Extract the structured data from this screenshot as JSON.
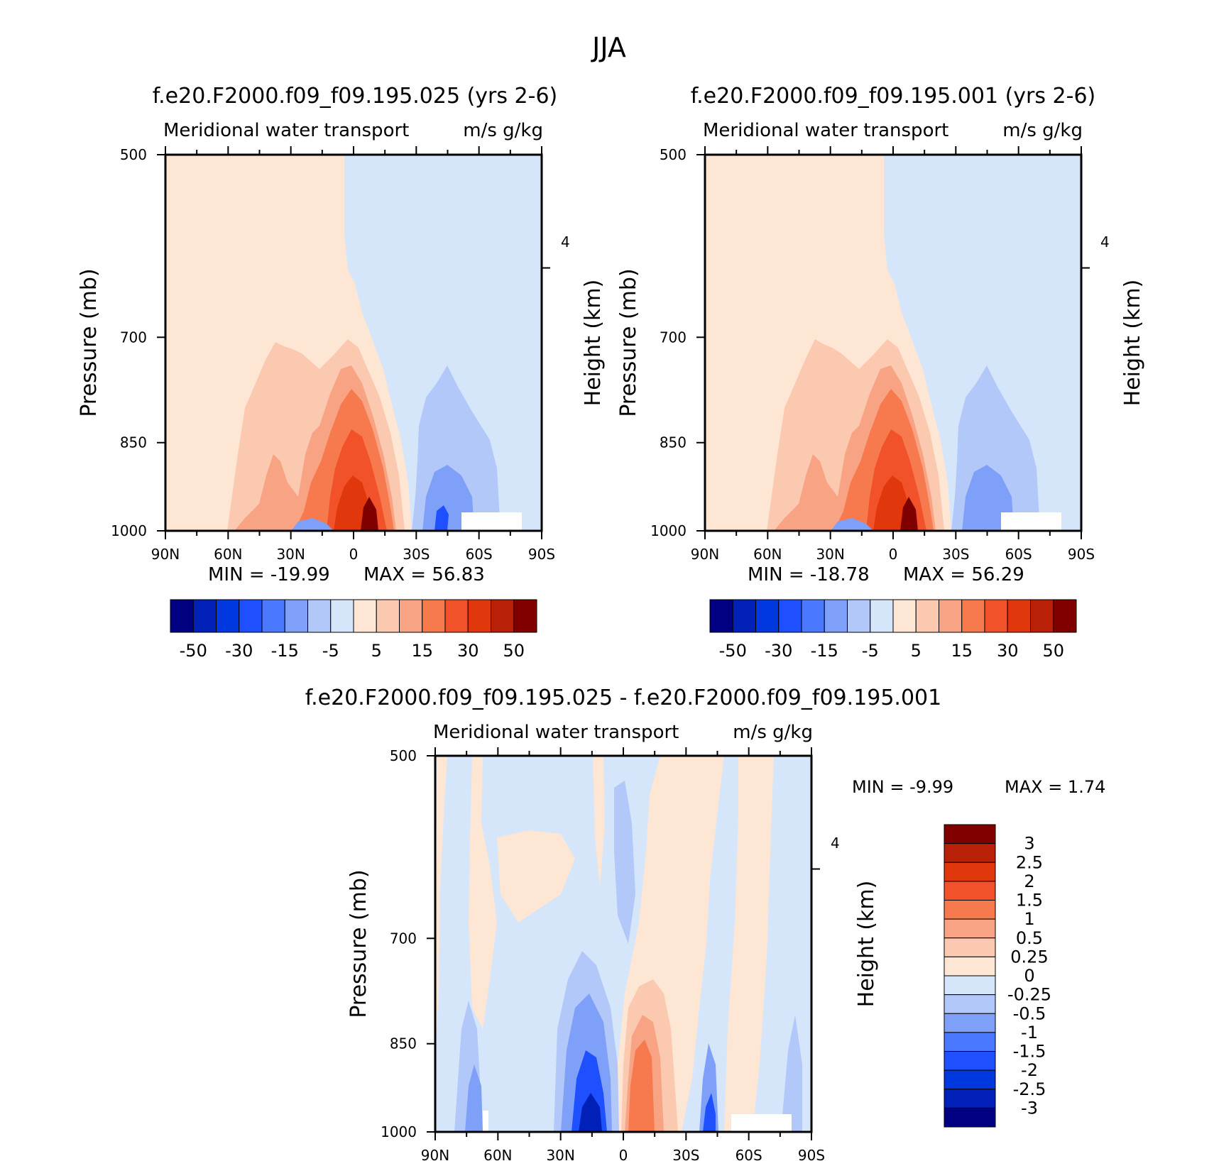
{
  "page": {
    "title": "JJA"
  },
  "chart_data": [
    {
      "type": "heatmap",
      "title": "f.e20.F2000.f09_f09.195.025 (yrs 2-6)",
      "subtitle_left": "Meridional water transport",
      "subtitle_right": "m/s g/kg",
      "xlabel": "",
      "ylabel": "Pressure (mb)",
      "ylabel_right": "Height (km)",
      "x_ticks": [
        "90N",
        "60N",
        "30N",
        "0",
        "30S",
        "60S",
        "90S"
      ],
      "x_tick_values": [
        90,
        60,
        30,
        0,
        -30,
        -60,
        -90
      ],
      "y_ticks": [
        "500",
        "700",
        "850",
        "1000"
      ],
      "y_tick_values": [
        500,
        700,
        850,
        1000
      ],
      "y_right_ticks": [
        "4"
      ],
      "ylim": [
        1000,
        500
      ],
      "min_label": "MIN = -19.99",
      "max_label": "MAX = 56.83",
      "min": -19.99,
      "max": 56.83,
      "colorbar_labels": [
        "-50",
        "-30",
        "-15",
        "-5",
        "5",
        "15",
        "30",
        "50"
      ]
    },
    {
      "type": "heatmap",
      "title": "f.e20.F2000.f09_f09.195.001 (yrs 2-6)",
      "subtitle_left": "Meridional water transport",
      "subtitle_right": "m/s g/kg",
      "ylabel": "Pressure (mb)",
      "ylabel_right": "Height (km)",
      "x_ticks": [
        "90N",
        "60N",
        "30N",
        "0",
        "30S",
        "60S",
        "90S"
      ],
      "y_ticks": [
        "500",
        "700",
        "850",
        "1000"
      ],
      "y_right_ticks": [
        "4"
      ],
      "ylim": [
        1000,
        500
      ],
      "min_label": "MIN = -18.78",
      "max_label": "MAX = 56.29",
      "min": -18.78,
      "max": 56.29,
      "colorbar_labels": [
        "-50",
        "-30",
        "-15",
        "-5",
        "5",
        "15",
        "30",
        "50"
      ]
    },
    {
      "type": "heatmap",
      "title": "f.e20.F2000.f09_f09.195.025 - f.e20.F2000.f09_f09.195.001",
      "subtitle_left": "Meridional water transport",
      "subtitle_right": "m/s g/kg",
      "ylabel": "Pressure (mb)",
      "ylabel_right": "Height (km)",
      "x_ticks": [
        "90N",
        "60N",
        "30N",
        "0",
        "30S",
        "60S",
        "90S"
      ],
      "y_ticks": [
        "500",
        "700",
        "850",
        "1000"
      ],
      "y_right_ticks": [
        "4"
      ],
      "ylim": [
        1000,
        500
      ],
      "min_label": "MIN = -9.99",
      "max_label": "MAX = 1.74",
      "min": -9.99,
      "max": 1.74,
      "colorbar_labels": [
        "3",
        "2.5",
        "2",
        "1.5",
        "1",
        "0.5",
        "0.25",
        "0",
        "-0.25",
        "-0.5",
        "-1",
        "-1.5",
        "-2",
        "-2.5",
        "-3"
      ]
    }
  ],
  "colors": {
    "palette_16": [
      "#000080",
      "#0020b8",
      "#0038e0",
      "#1e50ff",
      "#4a78ff",
      "#7fa0f8",
      "#b2c8f8",
      "#d6e6fa",
      "#fde6d4",
      "#fbc8b0",
      "#f8a484",
      "#f77a4e",
      "#f2522a",
      "#e0380c",
      "#b82008",
      "#800000"
    ],
    "bg_neg": "#d6e6fa",
    "bg_pos": "#fde6d4"
  }
}
